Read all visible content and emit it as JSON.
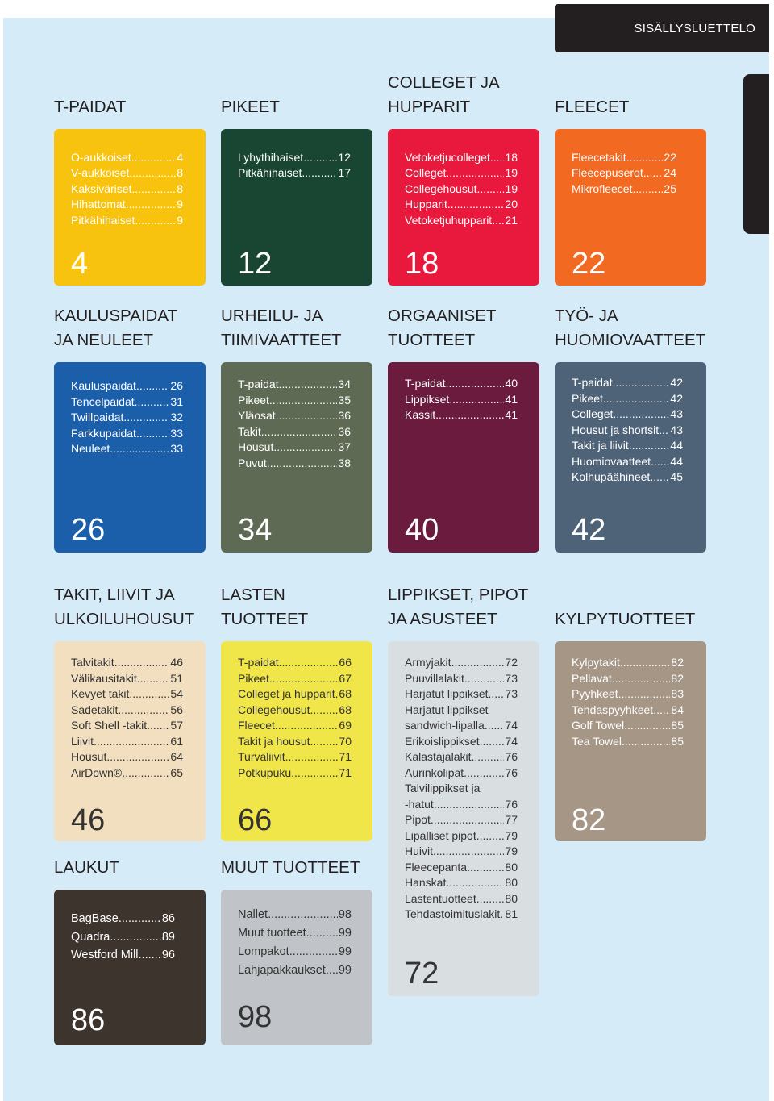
{
  "header": {
    "title": "SISÄLLYSLUETTELO"
  },
  "colors": {
    "page_background": "#d6ebf8",
    "tab": "#231f20",
    "heading": "#231f20"
  },
  "sections": [
    {
      "heading": [
        "T-PAIDAT"
      ],
      "color": "#f8c30f",
      "text_color": "#ffffff",
      "number": "4",
      "items": [
        {
          "label": "O-aukkoiset",
          "page": "4"
        },
        {
          "label": "V-aukkoiset",
          "page": "8"
        },
        {
          "label": "Kaksiväriset",
          "page": "8"
        },
        {
          "label": "Hihattomat",
          "page": "9"
        },
        {
          "label": "Pitkähihaiset",
          "page": "9"
        }
      ]
    },
    {
      "heading": [
        "PIKEET"
      ],
      "color": "#184632",
      "text_color": "#ffffff",
      "number": "12",
      "items": [
        {
          "label": "Lyhythihaiset",
          "page": "12"
        },
        {
          "label": "Pitkähihaiset",
          "page": "17"
        }
      ]
    },
    {
      "heading": [
        "COLLEGET JA",
        "HUPPARIT"
      ],
      "color": "#e8193c",
      "text_color": "#ffffff",
      "number": "18",
      "items": [
        {
          "label": "Vetoketjucolleget",
          "page": "18"
        },
        {
          "label": "Colleget",
          "page": "19"
        },
        {
          "label": "Collegehousut",
          "page": "19"
        },
        {
          "label": "Hupparit",
          "page": "20"
        },
        {
          "label": "Vetoketjuhupparit",
          "page": "21"
        }
      ]
    },
    {
      "heading": [
        "FLEECET"
      ],
      "color": "#f26a21",
      "text_color": "#ffffff",
      "number": "22",
      "items": [
        {
          "label": "Fleecetakit",
          "page": "22"
        },
        {
          "label": "Fleecepuserot",
          "page": "24"
        },
        {
          "label": "Mikrofleecet",
          "page": "25"
        }
      ]
    },
    {
      "heading": [
        "KAULUSPAIDAT",
        "JA NEULEET"
      ],
      "color": "#1b5fab",
      "text_color": "#ffffff",
      "number": "26",
      "items": [
        {
          "label": "Kauluspaidat",
          "page": "26"
        },
        {
          "label": "Tencelpaidat",
          "page": "31"
        },
        {
          "label": "Twillpaidat",
          "page": "32"
        },
        {
          "label": "Farkkupaidat",
          "page": "33"
        },
        {
          "label": "Neuleet",
          "page": "33"
        }
      ]
    },
    {
      "heading": [
        "URHEILU- JA",
        "TIIMIVAATTEET"
      ],
      "color": "#5e6a53",
      "text_color": "#ffffff",
      "number": "34",
      "items": [
        {
          "label": "T-paidat",
          "page": "34"
        },
        {
          "label": "Pikeet",
          "page": "35"
        },
        {
          "label": "Yläosat",
          "page": "36"
        },
        {
          "label": "Takit",
          "page": "36"
        },
        {
          "label": "Housut",
          "page": "37"
        },
        {
          "label": "Puvut",
          "page": "38"
        }
      ]
    },
    {
      "heading": [
        "ORGAANISET",
        "TUOTTEET"
      ],
      "color": "#6a1b3e",
      "text_color": "#ffffff",
      "number": "40",
      "items": [
        {
          "label": "T-paidat",
          "page": "40"
        },
        {
          "label": "Lippikset",
          "page": "41"
        },
        {
          "label": "Kassit",
          "page": "41"
        }
      ]
    },
    {
      "heading": [
        "TYÖ- JA",
        "HUOMIOVAATTEET"
      ],
      "color": "#4f6378",
      "text_color": "#ffffff",
      "number": "42",
      "items": [
        {
          "label": "T-paidat",
          "page": "42"
        },
        {
          "label": "Pikeet",
          "page": "42"
        },
        {
          "label": "Colleget",
          "page": "43"
        },
        {
          "label": "Housut ja shortsit",
          "page": "43"
        },
        {
          "label": "Takit ja liivit",
          "page": "44"
        },
        {
          "label": "Huomiovaatteet",
          "page": "44"
        },
        {
          "label": "Kolhupäähineet",
          "page": "45"
        }
      ]
    },
    {
      "heading": [
        "TAKIT, LIIVIT JA",
        "ULKOILUHOUSUT"
      ],
      "color": "#f2dfbf",
      "text_color": "#333333",
      "number": "46",
      "items": [
        {
          "label": "Talvitakit",
          "page": "46"
        },
        {
          "label": "Välikausitakit",
          "page": "51"
        },
        {
          "label": "Kevyet takit",
          "page": "54"
        },
        {
          "label": "Sadetakit",
          "page": "56"
        },
        {
          "label": "Soft Shell -takit",
          "page": "57"
        },
        {
          "label": "Liivit",
          "page": "61"
        },
        {
          "label": "Housut",
          "page": "64"
        },
        {
          "label": "AirDown®",
          "page": "65"
        }
      ]
    },
    {
      "heading": [
        "LASTEN",
        "TUOTTEET"
      ],
      "color": "#f0e64a",
      "text_color": "#333333",
      "number": "66",
      "items": [
        {
          "label": "T-paidat",
          "page": "66"
        },
        {
          "label": "Pikeet",
          "page": "67"
        },
        {
          "label": "Colleget ja hupparit",
          "page": "68"
        },
        {
          "label": "Collegehousut",
          "page": "68"
        },
        {
          "label": "Fleecet",
          "page": "69"
        },
        {
          "label": "Takit ja housut",
          "page": "70"
        },
        {
          "label": "Turvaliivit",
          "page": "71"
        },
        {
          "label": "Potkupuku",
          "page": "71"
        }
      ]
    },
    {
      "heading": [
        "LIPPIKSET, PIPOT",
        "JA ASUSTEET"
      ],
      "color": "#d9dee1",
      "text_color": "#333333",
      "number": "72",
      "items": [
        {
          "label": "Armyjakit",
          "page": "72"
        },
        {
          "label": "Puuvillalakit",
          "page": "73"
        },
        {
          "label": "Harjatut lippikset",
          "page": "73"
        },
        {
          "label": "Harjatut lippikset"
        },
        {
          "label": "sandwich-lipalla",
          "page": "74"
        },
        {
          "label": "Erikoislippikset",
          "page": "74"
        },
        {
          "label": "Kalastajalakit",
          "page": "76"
        },
        {
          "label": "Aurinkolipat",
          "page": "76"
        },
        {
          "label": "Talvilippikset ja"
        },
        {
          "label": "-hatut",
          "page": "76"
        },
        {
          "label": "Pipot",
          "page": "77"
        },
        {
          "label": "Lipalliset pipot",
          "page": "79"
        },
        {
          "label": "Huivit",
          "page": "79"
        },
        {
          "label": "Fleecepanta",
          "page": "80"
        },
        {
          "label": "Hanskat",
          "page": "80"
        },
        {
          "label": "Lastentuotteet",
          "page": "80"
        },
        {
          "label": "Tehdastoimituslakit",
          "page": "81"
        }
      ]
    },
    {
      "heading": [
        "KYLPYTUOTTEET"
      ],
      "color": "#a69686",
      "text_color": "#ffffff",
      "number": "82",
      "items": [
        {
          "label": "Kylpytakit",
          "page": "82"
        },
        {
          "label": "Pellavat",
          "page": "82"
        },
        {
          "label": "Pyyhkeet",
          "page": "83"
        },
        {
          "label": "Tehdaspyyhkeet",
          "page": "84"
        },
        {
          "label": "Golf Towel",
          "page": "85"
        },
        {
          "label": "Tea Towel",
          "page": "85"
        }
      ]
    },
    {
      "heading": [
        "LAUKUT"
      ],
      "color": "#3e342e",
      "text_color": "#ffffff",
      "number": "86",
      "items": [
        {
          "label": "BagBase",
          "page": "86"
        },
        {
          "label": "Quadra",
          "page": "89"
        },
        {
          "label": "Westford Mill",
          "page": "96"
        }
      ]
    },
    {
      "heading": [
        "MUUT TUOTTEET"
      ],
      "color": "#c0c3c7",
      "text_color": "#333333",
      "number": "98",
      "items": [
        {
          "label": "Nallet",
          "page": "98"
        },
        {
          "label": "Muut tuotteet",
          "page": "99"
        },
        {
          "label": "Lompakot",
          "page": "99"
        },
        {
          "label": "Lahjapakkaukset",
          "page": "99"
        }
      ]
    }
  ]
}
